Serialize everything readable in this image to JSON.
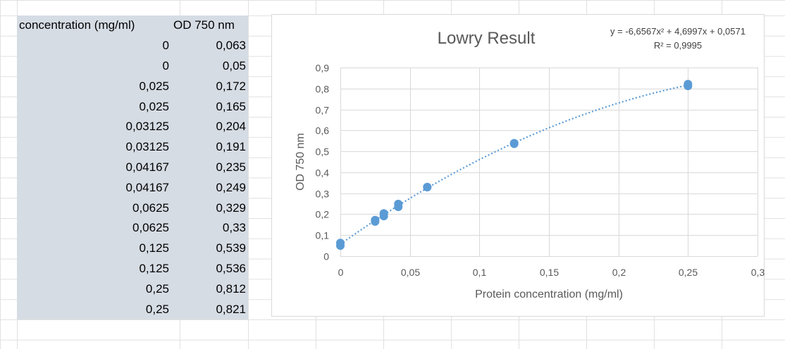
{
  "table": {
    "headers": [
      "concentration (mg/ml)",
      "OD 750 nm"
    ],
    "rows": [
      [
        "0",
        "0,063"
      ],
      [
        "0",
        "0,05"
      ],
      [
        "0,025",
        "0,172"
      ],
      [
        "0,025",
        "0,165"
      ],
      [
        "0,03125",
        "0,204"
      ],
      [
        "0,03125",
        "0,191"
      ],
      [
        "0,04167",
        "0,235"
      ],
      [
        "0,04167",
        "0,249"
      ],
      [
        "0,0625",
        "0,329"
      ],
      [
        "0,0625",
        "0,33"
      ],
      [
        "0,125",
        "0,539"
      ],
      [
        "0,125",
        "0,536"
      ],
      [
        "0,25",
        "0,812"
      ],
      [
        "0,25",
        "0,821"
      ]
    ]
  },
  "chart_data": {
    "type": "scatter",
    "title": "Lowry Result",
    "xlabel": "Protein concentration (mg/ml)",
    "ylabel": "OD 750 nm",
    "xlim": [
      0,
      0.3
    ],
    "ylim": [
      0,
      0.9
    ],
    "x_ticks": [
      "0",
      "0,05",
      "0,1",
      "0,15",
      "0,2",
      "0,25",
      "0,3"
    ],
    "y_ticks": [
      "0",
      "0,1",
      "0,2",
      "0,3",
      "0,4",
      "0,5",
      "0,6",
      "0,7",
      "0,8",
      "0,9"
    ],
    "x": [
      0,
      0,
      0.025,
      0.025,
      0.03125,
      0.03125,
      0.04167,
      0.04167,
      0.0625,
      0.0625,
      0.125,
      0.125,
      0.25,
      0.25
    ],
    "y": [
      0.063,
      0.05,
      0.172,
      0.165,
      0.204,
      0.191,
      0.235,
      0.249,
      0.329,
      0.33,
      0.539,
      0.536,
      0.812,
      0.821
    ],
    "trendline": {
      "type": "polynomial-2",
      "coefficients": [
        -6.6567,
        4.6997,
        0.0571
      ],
      "equation": "y = -6,6567x² + 4,6997x + 0,0571",
      "r_squared": "R² = 0,9995",
      "style": "dotted"
    },
    "grid": true,
    "legend": "none",
    "color": "#5b9bd5"
  }
}
